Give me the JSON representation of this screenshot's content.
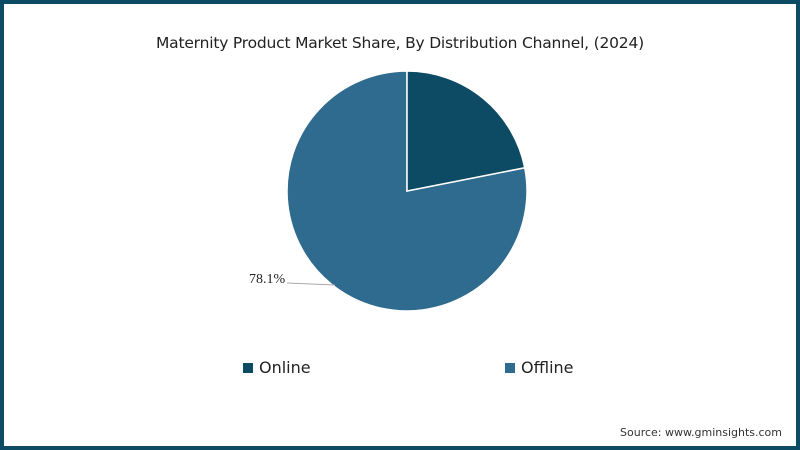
{
  "chart_data": {
    "type": "pie",
    "title": "Maternity Product Market Share, By Distribution Channel, (2024)",
    "categories": [
      "Online",
      "Offline"
    ],
    "values": [
      21.9,
      78.1
    ],
    "colors": [
      "#0d4a63",
      "#2e6b8e"
    ],
    "data_labels": [
      {
        "category": "Offline",
        "text": "78.1%"
      }
    ],
    "legend_position": "bottom",
    "start_angle": "12 o'clock, clockwise"
  },
  "title": "Maternity Product Market Share, By Distribution Channel, (2024)",
  "legend": [
    {
      "label": "Online",
      "color": "#0d4a63"
    },
    {
      "label": "Offline",
      "color": "#2e6b8e"
    }
  ],
  "label_offline": "78.1%",
  "source": "Source: www.gminsights.com",
  "frame_color": "#0d4a63"
}
